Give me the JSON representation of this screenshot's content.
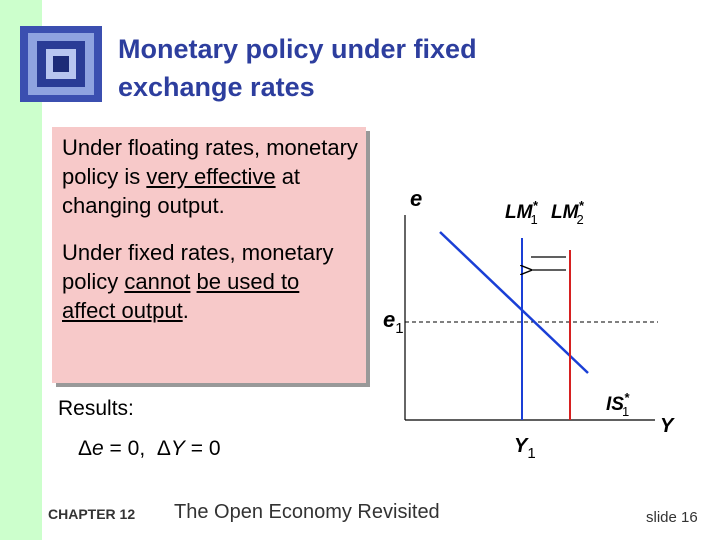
{
  "header": {
    "title": "Monetary policy under fixed exchange rates"
  },
  "box": {
    "paragraphs": [
      [
        "Under floating rates, monetary policy is ",
        "very effective",
        " at changing output."
      ],
      [
        "Under fixed rates, monetary policy ",
        "cannot",
        " be used to affect output",
        "."
      ]
    ]
  },
  "results": {
    "label": "Results:",
    "equation": [
      "Δ",
      "e",
      " = 0,  ",
      "Δ",
      "Y",
      " = 0"
    ]
  },
  "diagram": {
    "y_axis": "e",
    "x_axis": "Y",
    "lm1": {
      "name": "LM",
      "sup": "*",
      "sub": "1"
    },
    "lm2": {
      "name": "LM",
      "sup": "*",
      "sub": "2"
    },
    "is1": {
      "name": "IS",
      "sup": "*",
      "sub": "1"
    },
    "e1": {
      "name": "e",
      "sub": "1"
    },
    "y1": {
      "name": "Y",
      "sub": "1"
    }
  },
  "footer": {
    "chapter": "CHAPTER 12",
    "book": "The Open Economy Revisited",
    "slide": "slide 16"
  }
}
